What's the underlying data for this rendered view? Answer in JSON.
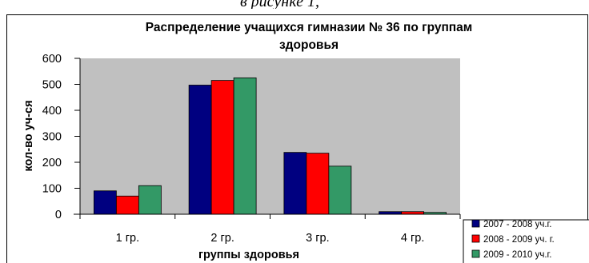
{
  "top_partial_text": "в рисунке 1,",
  "chart_data": {
    "type": "bar",
    "title_lines": [
      "Распределение учащихся гимназии № 36 по группам",
      "здоровья"
    ],
    "xlabel": "группы здоровья",
    "ylabel": "кол-во уч-ся",
    "categories": [
      "1 гр.",
      "2 гр.",
      "3 гр.",
      "4 гр."
    ],
    "y_ticks": [
      "0",
      "100",
      "200",
      "300",
      "400",
      "500",
      "600"
    ],
    "ylim": [
      0,
      600
    ],
    "grid": false,
    "plot_background": "#c0c0c0",
    "legend_position": "bottom-right",
    "series": [
      {
        "name": "2007 - 2008 уч.г.",
        "color": "#000080",
        "values": [
          90,
          497,
          238,
          10
        ]
      },
      {
        "name": "2008 - 2009 уч. г.",
        "color": "#ff0000",
        "values": [
          70,
          515,
          235,
          10
        ]
      },
      {
        "name": "2009 - 2010 уч.г.",
        "color": "#339966",
        "values": [
          110,
          525,
          185,
          7
        ]
      }
    ]
  }
}
